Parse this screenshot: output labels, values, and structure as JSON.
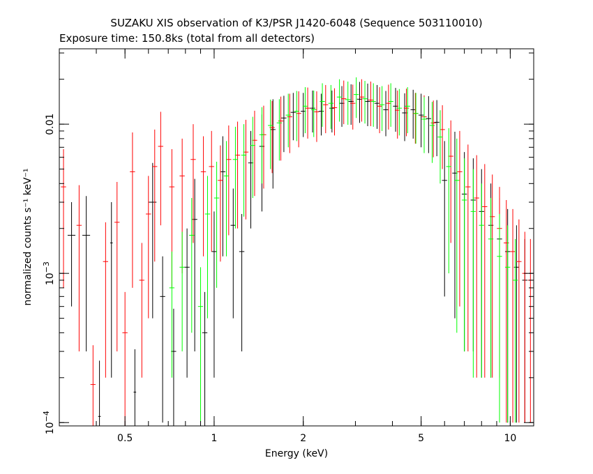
{
  "chart_data": {
    "type": "scatter",
    "title": "SUZAKU XIS observation of K3/PSR J1420-6048 (Sequence 503110010)",
    "subtitle": "Exposure time: 150.8ks (total from all detectors)",
    "xlabel": "Energy (keV)",
    "ylabel": "normalized counts s⁻¹ keV⁻¹",
    "xscale": "log",
    "yscale": "log",
    "xlim": [
      0.3,
      12
    ],
    "ylim": [
      9.5e-05,
      0.032
    ],
    "x_ticks": [
      {
        "value": 0.5,
        "label": "0.5"
      },
      {
        "value": 1,
        "label": "1"
      },
      {
        "value": 2,
        "label": "2"
      },
      {
        "value": 5,
        "label": "5"
      },
      {
        "value": 10,
        "label": "10"
      }
    ],
    "y_ticks": [
      {
        "value": 0.0001,
        "label_base": "10",
        "label_exp": "−4"
      },
      {
        "value": 0.001,
        "label_base": "10",
        "label_exp": "−3"
      },
      {
        "value": 0.01,
        "label": "0.01"
      }
    ],
    "grid": false,
    "legend": "none",
    "series": [
      {
        "color": "#000000",
        "points": [
          [
            0.33,
            0.0018,
            0.03,
            0.0012
          ],
          [
            0.37,
            0.0018,
            0.03,
            0.0015
          ],
          [
            0.41,
            0.00011,
            0.01,
            0.00015
          ],
          [
            0.45,
            0.0016,
            0.01,
            0.0014
          ],
          [
            0.54,
            0.00016,
            0.01,
            0.00015
          ],
          [
            0.62,
            0.003,
            0.03,
            0.0025
          ],
          [
            0.67,
            0.0007,
            0.02,
            0.0006
          ],
          [
            0.73,
            0.0003,
            0.02,
            0.00028
          ],
          [
            0.81,
            0.0011,
            0.02,
            0.0009
          ],
          [
            0.86,
            0.0023,
            0.02,
            0.002
          ],
          [
            0.93,
            0.0004,
            0.02,
            0.00035
          ],
          [
            1.0,
            0.0014,
            0.02,
            0.0012
          ],
          [
            1.07,
            0.0048,
            0.02,
            0.0035
          ],
          [
            1.16,
            0.0021,
            0.02,
            0.0016
          ],
          [
            1.24,
            0.0014,
            0.02,
            0.0011
          ],
          [
            1.33,
            0.0055,
            0.02,
            0.0035
          ],
          [
            1.45,
            0.0071,
            0.02,
            0.0045
          ],
          [
            1.58,
            0.0092,
            0.02,
            0.0055
          ],
          [
            1.72,
            0.011,
            0.02,
            0.0045
          ],
          [
            1.85,
            0.012,
            0.02,
            0.0042
          ],
          [
            2.0,
            0.0122,
            0.02,
            0.004
          ],
          [
            2.15,
            0.0128,
            0.02,
            0.004
          ],
          [
            2.3,
            0.0122,
            0.02,
            0.0038
          ],
          [
            2.5,
            0.0128,
            0.02,
            0.004
          ],
          [
            2.7,
            0.0138,
            0.02,
            0.0042
          ],
          [
            2.9,
            0.0142,
            0.02,
            0.0043
          ],
          [
            3.1,
            0.0147,
            0.02,
            0.0045
          ],
          [
            3.3,
            0.0142,
            0.02,
            0.0045
          ],
          [
            3.55,
            0.0138,
            0.02,
            0.0045
          ],
          [
            3.8,
            0.0125,
            0.02,
            0.0042
          ],
          [
            4.1,
            0.0132,
            0.02,
            0.0043
          ],
          [
            4.4,
            0.0119,
            0.02,
            0.0042
          ],
          [
            4.7,
            0.0125,
            0.02,
            0.0045
          ],
          [
            5.0,
            0.0115,
            0.02,
            0.0045
          ],
          [
            5.3,
            0.0109,
            0.02,
            0.0045
          ],
          [
            5.65,
            0.0103,
            0.02,
            0.0042
          ],
          [
            6.0,
            0.0042,
            0.02,
            0.0035
          ],
          [
            6.5,
            0.0047,
            0.02,
            0.0042
          ],
          [
            7.0,
            0.0034,
            0.02,
            0.0031
          ],
          [
            7.5,
            0.0031,
            0.02,
            0.0028
          ],
          [
            8.0,
            0.0026,
            0.02,
            0.0024
          ],
          [
            8.6,
            0.0021,
            0.02,
            0.0019
          ],
          [
            9.2,
            0.0017,
            0.02,
            0.0015
          ],
          [
            9.8,
            0.0014,
            0.02,
            0.0013
          ],
          [
            10.5,
            0.0011,
            0.02,
            0.001
          ],
          [
            11.2,
            0.0009,
            0.02,
            0.0008
          ]
        ]
      },
      {
        "color": "#ff0000",
        "points": [
          [
            0.31,
            0.0038,
            0.02,
            0.003
          ],
          [
            0.35,
            0.0021,
            0.02,
            0.0018
          ],
          [
            0.39,
            0.00018,
            0.02,
            0.00015
          ],
          [
            0.43,
            0.0012,
            0.02,
            0.001
          ],
          [
            0.47,
            0.0022,
            0.02,
            0.0019
          ],
          [
            0.5,
            0.0004,
            0.02,
            0.00035
          ],
          [
            0.53,
            0.0048,
            0.02,
            0.004
          ],
          [
            0.57,
            0.0009,
            0.02,
            0.0007
          ],
          [
            0.6,
            0.0025,
            0.02,
            0.002
          ],
          [
            0.63,
            0.0052,
            0.02,
            0.004
          ],
          [
            0.66,
            0.0071,
            0.02,
            0.005
          ],
          [
            0.72,
            0.0038,
            0.02,
            0.003
          ],
          [
            0.78,
            0.0045,
            0.02,
            0.0035
          ],
          [
            0.85,
            0.0058,
            0.02,
            0.0042
          ],
          [
            0.92,
            0.0048,
            0.02,
            0.0035
          ],
          [
            0.98,
            0.0052,
            0.02,
            0.0038
          ],
          [
            1.05,
            0.0042,
            0.02,
            0.003
          ],
          [
            1.12,
            0.0058,
            0.02,
            0.004
          ],
          [
            1.2,
            0.0062,
            0.02,
            0.0042
          ],
          [
            1.28,
            0.0065,
            0.02,
            0.0042
          ],
          [
            1.37,
            0.0078,
            0.02,
            0.0045
          ],
          [
            1.47,
            0.0085,
            0.02,
            0.0048
          ],
          [
            1.57,
            0.0095,
            0.02,
            0.0048
          ],
          [
            1.68,
            0.0105,
            0.02,
            0.0048
          ],
          [
            1.8,
            0.0112,
            0.02,
            0.0048
          ],
          [
            1.93,
            0.0118,
            0.02,
            0.0048
          ],
          [
            2.07,
            0.0128,
            0.02,
            0.0048
          ],
          [
            2.22,
            0.0121,
            0.02,
            0.0045
          ],
          [
            2.38,
            0.0135,
            0.02,
            0.0048
          ],
          [
            2.55,
            0.0129,
            0.02,
            0.0045
          ],
          [
            2.74,
            0.0148,
            0.02,
            0.0048
          ],
          [
            2.94,
            0.0138,
            0.02,
            0.0046
          ],
          [
            3.15,
            0.0152,
            0.02,
            0.0048
          ],
          [
            3.38,
            0.0145,
            0.02,
            0.0048
          ],
          [
            3.62,
            0.0132,
            0.02,
            0.0045
          ],
          [
            3.88,
            0.0138,
            0.02,
            0.0046
          ],
          [
            4.16,
            0.0124,
            0.02,
            0.0044
          ],
          [
            4.46,
            0.0128,
            0.02,
            0.0045
          ],
          [
            4.78,
            0.0118,
            0.02,
            0.0044
          ],
          [
            5.12,
            0.0112,
            0.02,
            0.0044
          ],
          [
            5.5,
            0.0102,
            0.02,
            0.0042
          ],
          [
            5.9,
            0.0092,
            0.02,
            0.0042
          ],
          [
            6.3,
            0.0061,
            0.02,
            0.0045
          ],
          [
            6.75,
            0.0048,
            0.02,
            0.0042
          ],
          [
            7.2,
            0.0038,
            0.02,
            0.0035
          ],
          [
            7.7,
            0.0032,
            0.02,
            0.003
          ],
          [
            8.2,
            0.0028,
            0.02,
            0.0026
          ],
          [
            8.7,
            0.0024,
            0.02,
            0.0022
          ],
          [
            9.2,
            0.002,
            0.02,
            0.0018
          ],
          [
            9.7,
            0.0016,
            0.02,
            0.0015
          ],
          [
            10.2,
            0.0014,
            0.02,
            0.0013
          ],
          [
            10.7,
            0.0012,
            0.02,
            0.0011
          ],
          [
            11.2,
            0.001,
            0.02,
            0.0009
          ],
          [
            11.7,
            0.0009,
            0.02,
            0.0008
          ]
        ]
      },
      {
        "color": "#00ff00",
        "points": [
          [
            0.72,
            0.0008,
            0.02,
            0.0006
          ],
          [
            0.78,
            0.0011,
            0.02,
            0.0008
          ],
          [
            0.84,
            0.0018,
            0.02,
            0.0014
          ],
          [
            0.9,
            0.0006,
            0.02,
            0.0005
          ],
          [
            0.95,
            0.0025,
            0.02,
            0.002
          ],
          [
            1.02,
            0.0032,
            0.02,
            0.0024
          ],
          [
            1.1,
            0.0045,
            0.02,
            0.0032
          ],
          [
            1.18,
            0.0058,
            0.02,
            0.0038
          ],
          [
            1.26,
            0.0062,
            0.02,
            0.0038
          ],
          [
            1.35,
            0.0072,
            0.02,
            0.004
          ],
          [
            1.45,
            0.0085,
            0.02,
            0.0045
          ],
          [
            1.55,
            0.0098,
            0.02,
            0.0048
          ],
          [
            1.66,
            0.0102,
            0.02,
            0.0045
          ],
          [
            1.78,
            0.0115,
            0.02,
            0.0045
          ],
          [
            1.9,
            0.0122,
            0.02,
            0.0045
          ],
          [
            2.03,
            0.0132,
            0.02,
            0.0045
          ],
          [
            2.17,
            0.0125,
            0.02,
            0.0043
          ],
          [
            2.32,
            0.0142,
            0.02,
            0.0046
          ],
          [
            2.48,
            0.0138,
            0.02,
            0.0045
          ],
          [
            2.65,
            0.0152,
            0.02,
            0.0048
          ],
          [
            2.83,
            0.0146,
            0.02,
            0.0047
          ],
          [
            3.02,
            0.0158,
            0.02,
            0.0048
          ],
          [
            3.23,
            0.0148,
            0.02,
            0.0047
          ],
          [
            3.45,
            0.0142,
            0.02,
            0.0046
          ],
          [
            3.69,
            0.0135,
            0.02,
            0.0045
          ],
          [
            3.95,
            0.0142,
            0.02,
            0.0046
          ],
          [
            4.22,
            0.0128,
            0.02,
            0.0044
          ],
          [
            4.5,
            0.0132,
            0.02,
            0.0045
          ],
          [
            4.8,
            0.0118,
            0.02,
            0.0044
          ],
          [
            5.12,
            0.0108,
            0.02,
            0.0044
          ],
          [
            5.45,
            0.0098,
            0.02,
            0.0043
          ],
          [
            5.8,
            0.0082,
            0.02,
            0.0042
          ],
          [
            6.2,
            0.0052,
            0.02,
            0.0042
          ],
          [
            6.6,
            0.0042,
            0.02,
            0.0038
          ],
          [
            7.0,
            0.0031,
            0.02,
            0.0028
          ],
          [
            7.5,
            0.0026,
            0.02,
            0.0024
          ],
          [
            8.0,
            0.0021,
            0.02,
            0.0019
          ],
          [
            8.6,
            0.0017,
            0.02,
            0.0015
          ],
          [
            9.2,
            0.0013,
            0.02,
            0.0012
          ],
          [
            9.8,
            0.0011,
            0.02,
            0.001
          ],
          [
            10.4,
            0.0009,
            0.02,
            0.0008
          ]
        ]
      }
    ]
  }
}
